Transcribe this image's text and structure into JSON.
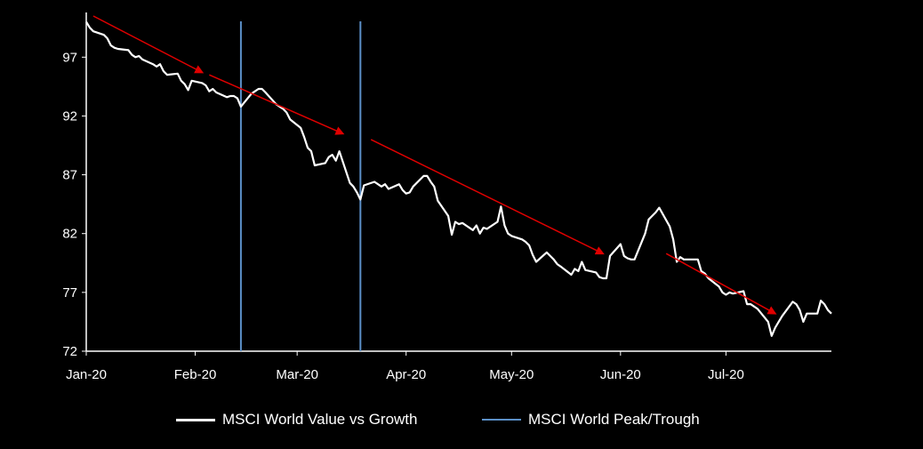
{
  "chart_data": {
    "type": "line",
    "title": "",
    "xlabel": "",
    "ylabel": "",
    "ylim": [
      72,
      100.5
    ],
    "yticks": [
      72,
      77,
      82,
      87,
      92,
      97
    ],
    "xrange": [
      "2020-01-01",
      "2020-07-31"
    ],
    "x_tick_labels": [
      {
        "date": "2020-01-01",
        "label": "Jan-20"
      },
      {
        "date": "2020-02-01",
        "label": "Feb-20"
      },
      {
        "date": "2020-03-01",
        "label": "Mar-20"
      },
      {
        "date": "2020-04-01",
        "label": "Apr-20"
      },
      {
        "date": "2020-05-01",
        "label": "May-20"
      },
      {
        "date": "2020-06-01",
        "label": "Jun-20"
      },
      {
        "date": "2020-07-01",
        "label": "Jul-20"
      }
    ],
    "grid": false,
    "legend_position": "bottom",
    "colors": {
      "background": "#000000",
      "line": "#ffffff",
      "peak_trough": "#5b8fc7",
      "trend_arrow": "#e00000"
    },
    "series": [
      {
        "name": "MSCI World Value vs Growth",
        "points": [
          [
            "2020-01-01",
            100.0
          ],
          [
            "2020-01-02",
            99.5
          ],
          [
            "2020-01-03",
            99.2
          ],
          [
            "2020-01-06",
            98.9
          ],
          [
            "2020-01-07",
            98.6
          ],
          [
            "2020-01-08",
            98.0
          ],
          [
            "2020-01-09",
            97.8
          ],
          [
            "2020-01-10",
            97.7
          ],
          [
            "2020-01-13",
            97.6
          ],
          [
            "2020-01-14",
            97.2
          ],
          [
            "2020-01-15",
            97.0
          ],
          [
            "2020-01-16",
            97.1
          ],
          [
            "2020-01-17",
            96.8
          ],
          [
            "2020-01-20",
            96.4
          ],
          [
            "2020-01-21",
            96.2
          ],
          [
            "2020-01-22",
            96.4
          ],
          [
            "2020-01-23",
            95.8
          ],
          [
            "2020-01-24",
            95.5
          ],
          [
            "2020-01-27",
            95.6
          ],
          [
            "2020-01-28",
            95.0
          ],
          [
            "2020-01-29",
            94.7
          ],
          [
            "2020-01-30",
            94.2
          ],
          [
            "2020-01-31",
            95.0
          ],
          [
            "2020-02-03",
            94.8
          ],
          [
            "2020-02-04",
            94.6
          ],
          [
            "2020-02-05",
            94.1
          ],
          [
            "2020-02-06",
            94.3
          ],
          [
            "2020-02-07",
            94.0
          ],
          [
            "2020-02-10",
            93.6
          ],
          [
            "2020-02-11",
            93.7
          ],
          [
            "2020-02-12",
            93.7
          ],
          [
            "2020-02-13",
            93.5
          ],
          [
            "2020-02-14",
            92.8
          ],
          [
            "2020-02-17",
            93.9
          ],
          [
            "2020-02-18",
            94.1
          ],
          [
            "2020-02-19",
            94.3
          ],
          [
            "2020-02-20",
            94.3
          ],
          [
            "2020-02-21",
            94.0
          ],
          [
            "2020-02-24",
            93.0
          ],
          [
            "2020-02-25",
            92.8
          ],
          [
            "2020-02-26",
            92.6
          ],
          [
            "2020-02-27",
            92.3
          ],
          [
            "2020-02-28",
            91.7
          ],
          [
            "2020-03-02",
            91.0
          ],
          [
            "2020-03-03",
            90.2
          ],
          [
            "2020-03-04",
            89.3
          ],
          [
            "2020-03-05",
            89.0
          ],
          [
            "2020-03-06",
            87.8
          ],
          [
            "2020-03-09",
            88.0
          ],
          [
            "2020-03-10",
            88.5
          ],
          [
            "2020-03-11",
            88.7
          ],
          [
            "2020-03-12",
            88.2
          ],
          [
            "2020-03-13",
            89.0
          ],
          [
            "2020-03-16",
            86.3
          ],
          [
            "2020-03-17",
            86.0
          ],
          [
            "2020-03-18",
            85.5
          ],
          [
            "2020-03-19",
            84.9
          ],
          [
            "2020-03-20",
            86.1
          ],
          [
            "2020-03-23",
            86.4
          ],
          [
            "2020-03-24",
            86.2
          ],
          [
            "2020-03-25",
            86.0
          ],
          [
            "2020-03-26",
            86.2
          ],
          [
            "2020-03-27",
            85.8
          ],
          [
            "2020-03-30",
            86.2
          ],
          [
            "2020-03-31",
            85.7
          ],
          [
            "2020-04-01",
            85.4
          ],
          [
            "2020-04-02",
            85.5
          ],
          [
            "2020-04-03",
            86.0
          ],
          [
            "2020-04-06",
            86.9
          ],
          [
            "2020-04-07",
            86.9
          ],
          [
            "2020-04-08",
            86.4
          ],
          [
            "2020-04-09",
            86.0
          ],
          [
            "2020-04-10",
            84.8
          ],
          [
            "2020-04-13",
            83.5
          ],
          [
            "2020-04-14",
            81.9
          ],
          [
            "2020-04-15",
            83.0
          ],
          [
            "2020-04-16",
            82.8
          ],
          [
            "2020-04-17",
            82.9
          ],
          [
            "2020-04-20",
            82.3
          ],
          [
            "2020-04-21",
            82.7
          ],
          [
            "2020-04-22",
            82.0
          ],
          [
            "2020-04-23",
            82.5
          ],
          [
            "2020-04-24",
            82.4
          ],
          [
            "2020-04-27",
            83.0
          ],
          [
            "2020-04-28",
            84.3
          ],
          [
            "2020-04-29",
            82.7
          ],
          [
            "2020-04-30",
            82.0
          ],
          [
            "2020-05-01",
            81.8
          ],
          [
            "2020-05-04",
            81.5
          ],
          [
            "2020-05-05",
            81.3
          ],
          [
            "2020-05-06",
            81.0
          ],
          [
            "2020-05-07",
            80.2
          ],
          [
            "2020-05-08",
            79.6
          ],
          [
            "2020-05-11",
            80.4
          ],
          [
            "2020-05-12",
            80.1
          ],
          [
            "2020-05-13",
            79.8
          ],
          [
            "2020-05-14",
            79.4
          ],
          [
            "2020-05-15",
            79.2
          ],
          [
            "2020-05-18",
            78.5
          ],
          [
            "2020-05-19",
            79.0
          ],
          [
            "2020-05-20",
            78.8
          ],
          [
            "2020-05-21",
            79.6
          ],
          [
            "2020-05-22",
            78.9
          ],
          [
            "2020-05-25",
            78.7
          ],
          [
            "2020-05-26",
            78.3
          ],
          [
            "2020-05-27",
            78.2
          ],
          [
            "2020-05-28",
            78.2
          ],
          [
            "2020-05-29",
            80.1
          ],
          [
            "2020-06-01",
            81.1
          ],
          [
            "2020-06-02",
            80.1
          ],
          [
            "2020-06-03",
            79.9
          ],
          [
            "2020-06-04",
            79.8
          ],
          [
            "2020-06-05",
            79.8
          ],
          [
            "2020-06-08",
            82.0
          ],
          [
            "2020-06-09",
            83.2
          ],
          [
            "2020-06-10",
            83.5
          ],
          [
            "2020-06-11",
            83.8
          ],
          [
            "2020-06-12",
            84.2
          ],
          [
            "2020-06-15",
            82.6
          ],
          [
            "2020-06-16",
            81.5
          ],
          [
            "2020-06-17",
            79.6
          ],
          [
            "2020-06-18",
            80.0
          ],
          [
            "2020-06-19",
            79.8
          ],
          [
            "2020-06-22",
            79.8
          ],
          [
            "2020-06-23",
            79.8
          ],
          [
            "2020-06-24",
            78.8
          ],
          [
            "2020-06-25",
            78.6
          ],
          [
            "2020-06-26",
            78.2
          ],
          [
            "2020-06-29",
            77.5
          ],
          [
            "2020-06-30",
            77.0
          ],
          [
            "2020-07-01",
            76.8
          ],
          [
            "2020-07-02",
            77.0
          ],
          [
            "2020-07-03",
            76.9
          ],
          [
            "2020-07-06",
            77.1
          ],
          [
            "2020-07-07",
            76.0
          ],
          [
            "2020-07-08",
            76.0
          ],
          [
            "2020-07-09",
            75.8
          ],
          [
            "2020-07-10",
            75.6
          ],
          [
            "2020-07-13",
            74.5
          ],
          [
            "2020-07-14",
            73.3
          ],
          [
            "2020-07-15",
            74.0
          ],
          [
            "2020-07-16",
            74.5
          ],
          [
            "2020-07-17",
            75.0
          ],
          [
            "2020-07-20",
            76.2
          ],
          [
            "2020-07-21",
            76.0
          ],
          [
            "2020-07-22",
            75.5
          ],
          [
            "2020-07-23",
            74.5
          ],
          [
            "2020-07-24",
            75.2
          ],
          [
            "2020-07-27",
            75.2
          ],
          [
            "2020-07-28",
            76.3
          ],
          [
            "2020-07-29",
            76.0
          ],
          [
            "2020-07-30",
            75.5
          ],
          [
            "2020-07-31",
            75.2
          ]
        ]
      },
      {
        "name": "MSCI World Peak/Trough",
        "style": "vertical-lines",
        "dates": [
          "2020-02-14",
          "2020-03-19"
        ]
      }
    ],
    "trend_arrows": [
      {
        "from": [
          "2020-01-03",
          100.5
        ],
        "to": [
          "2020-02-03",
          95.7
        ]
      },
      {
        "from": [
          "2020-02-05",
          95.5
        ],
        "to": [
          "2020-03-14",
          90.5
        ]
      },
      {
        "from": [
          "2020-03-22",
          90.0
        ],
        "to": [
          "2020-05-27",
          80.3
        ]
      },
      {
        "from": [
          "2020-06-14",
          80.3
        ],
        "to": [
          "2020-07-15",
          75.2
        ]
      }
    ]
  }
}
